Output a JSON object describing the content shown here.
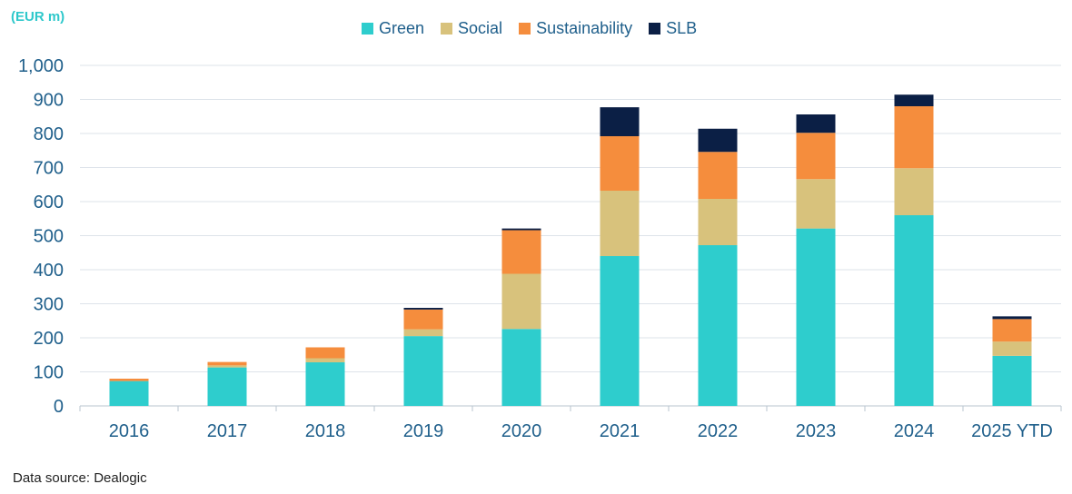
{
  "unit_label": "(EUR m)",
  "source": "Data source: Dealogic",
  "chart_data": {
    "type": "bar",
    "stacked": true,
    "categories": [
      "2016",
      "2017",
      "2018",
      "2019",
      "2020",
      "2021",
      "2022",
      "2023",
      "2024",
      "2025 YTD"
    ],
    "series": [
      {
        "name": "Green",
        "color": "#2ecdcd",
        "values": [
          73,
          113,
          128,
          205,
          226,
          440,
          472,
          521,
          560,
          147
        ]
      },
      {
        "name": "Social",
        "color": "#d8c27c",
        "values": [
          0,
          6,
          12,
          20,
          162,
          192,
          136,
          145,
          138,
          42
        ]
      },
      {
        "name": "Sustainability",
        "color": "#f58d3d",
        "values": [
          7,
          10,
          32,
          58,
          128,
          160,
          138,
          136,
          182,
          66
        ]
      },
      {
        "name": "SLB",
        "color": "#0b1f45",
        "values": [
          0,
          0,
          0,
          5,
          5,
          85,
          68,
          54,
          34,
          8
        ]
      }
    ],
    "ylim": [
      0,
      1000
    ],
    "yticks": [
      "0",
      "100",
      "200",
      "300",
      "400",
      "500",
      "600",
      "700",
      "800",
      "900",
      "1,000"
    ],
    "grid": true,
    "legend_position": "top"
  }
}
